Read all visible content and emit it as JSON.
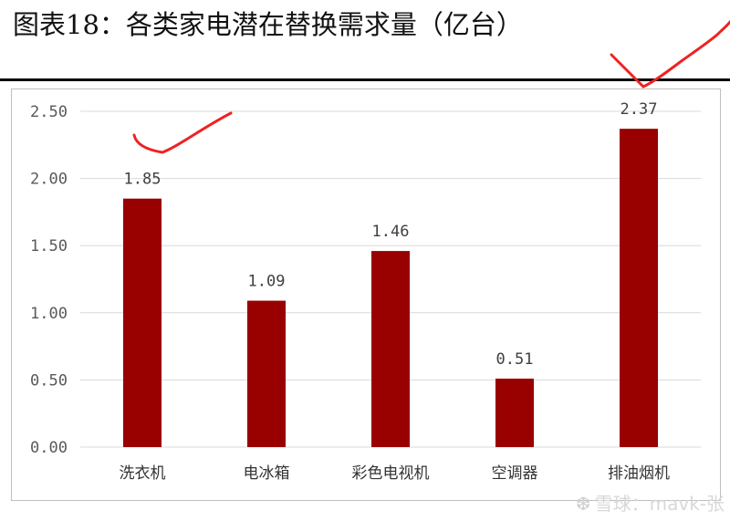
{
  "title": "图表18：各类家电潜在替换需求量（亿台）",
  "watermark": "雪球：mavk-张",
  "colors": {
    "bar": "#990000",
    "grid": "#d9d9d9",
    "annotation": "#ee2222"
  },
  "chart_data": {
    "type": "bar",
    "title": "图表18：各类家电潜在替换需求量（亿台）",
    "categories": [
      "洗衣机",
      "电冰箱",
      "彩色电视机",
      "空调器",
      "排油烟机"
    ],
    "values": [
      1.85,
      1.09,
      1.46,
      0.51,
      2.37
    ],
    "data_labels": [
      "1.85",
      "1.09",
      "1.46",
      "0.51",
      "2.37"
    ],
    "yticks": [
      "0.00",
      "0.50",
      "1.00",
      "1.50",
      "2.00",
      "2.50"
    ],
    "ylim": [
      0,
      2.5
    ],
    "xlabel": "",
    "ylabel": "",
    "grid": true,
    "legend": "none"
  }
}
